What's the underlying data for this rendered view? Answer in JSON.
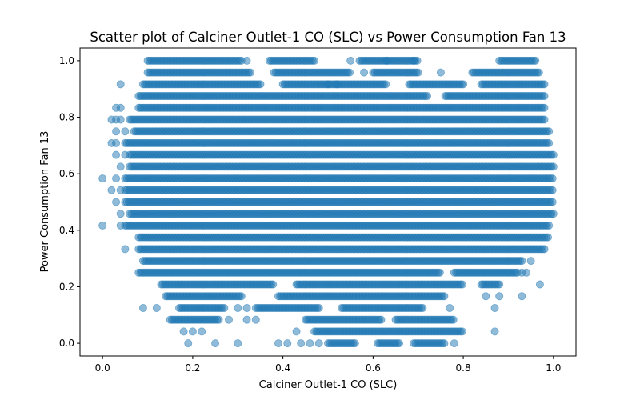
{
  "chart_data": {
    "type": "scatter",
    "title": "Scatter plot of Calciner Outlet-1 CO (SLC) vs Power Consumption Fan 13",
    "xlabel": "Calciner Outlet-1 CO (SLC)",
    "ylabel": "Power Consumption Fan 13",
    "xlim": [
      -0.05,
      1.05
    ],
    "ylim": [
      -0.045,
      1.045
    ],
    "x_ticks": [
      "0.0",
      "0.2",
      "0.4",
      "0.6",
      "0.8",
      "1.0"
    ],
    "y_ticks": [
      "0.0",
      "0.2",
      "0.4",
      "0.6",
      "0.8",
      "1.0"
    ],
    "grid": false,
    "marker_color": "#1f77b4",
    "marker_alpha": 0.5,
    "y_levels": [
      0.0,
      0.0417,
      0.0833,
      0.125,
      0.1667,
      0.2083,
      0.25,
      0.2917,
      0.3333,
      0.375,
      0.4167,
      0.4583,
      0.5,
      0.5417,
      0.5833,
      0.625,
      0.6667,
      0.7083,
      0.75,
      0.7917,
      0.8333,
      0.875,
      0.9167,
      0.9583,
      1.0
    ],
    "series": [
      {
        "bands": [
          {
            "y": 1.0,
            "ranges": [
              [
                0.1,
                0.31
              ],
              [
                0.37,
                0.47
              ],
              [
                0.57,
                0.7
              ],
              [
                0.88,
                0.96
              ]
            ],
            "singles": [
              0.32,
              0.55,
              0.63,
              0.69
            ]
          },
          {
            "y": 0.9583,
            "ranges": [
              [
                0.1,
                0.33
              ],
              [
                0.38,
                0.55
              ],
              [
                0.6,
                0.7
              ],
              [
                0.82,
                0.97
              ]
            ],
            "singles": [
              0.58,
              0.75
            ]
          },
          {
            "y": 0.9167,
            "ranges": [
              [
                0.09,
                0.35
              ],
              [
                0.4,
                0.63
              ],
              [
                0.68,
                0.8
              ],
              [
                0.84,
                0.98
              ]
            ],
            "singles": [
              0.04,
              0.5,
              0.52
            ]
          },
          {
            "y": 0.875,
            "ranges": [
              [
                0.08,
                0.72
              ],
              [
                0.76,
                0.98
              ]
            ],
            "singles": []
          },
          {
            "y": 0.8333,
            "ranges": [
              [
                0.08,
                0.98
              ]
            ],
            "singles": [
              0.03,
              0.04
            ]
          },
          {
            "y": 0.7917,
            "ranges": [
              [
                0.06,
                0.98
              ]
            ],
            "singles": [
              0.02,
              0.03,
              0.04
            ]
          },
          {
            "y": 0.75,
            "ranges": [
              [
                0.07,
                0.99
              ]
            ],
            "singles": [
              0.03,
              0.05
            ]
          },
          {
            "y": 0.7083,
            "ranges": [
              [
                0.05,
                0.99
              ]
            ],
            "singles": [
              0.02,
              0.03
            ]
          },
          {
            "y": 0.6667,
            "ranges": [
              [
                0.06,
                1.0
              ]
            ],
            "singles": [
              0.03,
              0.05
            ]
          },
          {
            "y": 0.625,
            "ranges": [
              [
                0.06,
                1.0
              ]
            ],
            "singles": [
              0.04
            ]
          },
          {
            "y": 0.5833,
            "ranges": [
              [
                0.05,
                1.0
              ]
            ],
            "singles": [
              0.0,
              0.03
            ]
          },
          {
            "y": 0.5417,
            "ranges": [
              [
                0.05,
                1.0
              ]
            ],
            "singles": [
              0.02,
              0.04
            ]
          },
          {
            "y": 0.5,
            "ranges": [
              [
                0.05,
                1.0
              ]
            ],
            "singles": [
              0.03
            ]
          },
          {
            "y": 0.4583,
            "ranges": [
              [
                0.06,
                1.0
              ]
            ],
            "singles": [
              0.04
            ]
          },
          {
            "y": 0.4167,
            "ranges": [
              [
                0.05,
                0.99
              ]
            ],
            "singles": [
              0.0,
              0.04
            ]
          },
          {
            "y": 0.375,
            "ranges": [
              [
                0.08,
                0.99
              ]
            ],
            "singles": []
          },
          {
            "y": 0.3333,
            "ranges": [
              [
                0.08,
                0.98
              ]
            ],
            "singles": [
              0.05
            ]
          },
          {
            "y": 0.2917,
            "ranges": [
              [
                0.09,
                0.93
              ]
            ],
            "singles": [
              0.95
            ]
          },
          {
            "y": 0.25,
            "ranges": [
              [
                0.08,
                0.75
              ],
              [
                0.78,
                0.92
              ]
            ],
            "singles": [
              0.93,
              0.94
            ]
          },
          {
            "y": 0.2083,
            "ranges": [
              [
                0.13,
                0.38
              ],
              [
                0.43,
                0.8
              ],
              [
                0.84,
                0.88
              ]
            ],
            "singles": [
              0.97
            ]
          },
          {
            "y": 0.1667,
            "ranges": [
              [
                0.14,
                0.31
              ],
              [
                0.39,
                0.76
              ]
            ],
            "singles": [
              0.85,
              0.88,
              0.93
            ]
          },
          {
            "y": 0.125,
            "ranges": [
              [
                0.17,
                0.27
              ],
              [
                0.34,
                0.48
              ],
              [
                0.53,
                0.71
              ]
            ],
            "singles": [
              0.09,
              0.12,
              0.3,
              0.32,
              0.77,
              0.87
            ]
          },
          {
            "y": 0.0833,
            "ranges": [
              [
                0.15,
                0.26
              ],
              [
                0.45,
                0.62
              ],
              [
                0.65,
                0.78
              ]
            ],
            "singles": [
              0.28,
              0.32,
              0.34
            ]
          },
          {
            "y": 0.0417,
            "ranges": [
              [
                0.47,
                0.8
              ]
            ],
            "singles": [
              0.18,
              0.2,
              0.22,
              0.43,
              0.87
            ]
          },
          {
            "y": 0.0,
            "ranges": [
              [
                0.5,
                0.56
              ],
              [
                0.61,
                0.66
              ],
              [
                0.69,
                0.76
              ]
            ],
            "singles": [
              0.19,
              0.25,
              0.3,
              0.39,
              0.41,
              0.44,
              0.46,
              0.48,
              0.78
            ]
          }
        ]
      }
    ]
  }
}
